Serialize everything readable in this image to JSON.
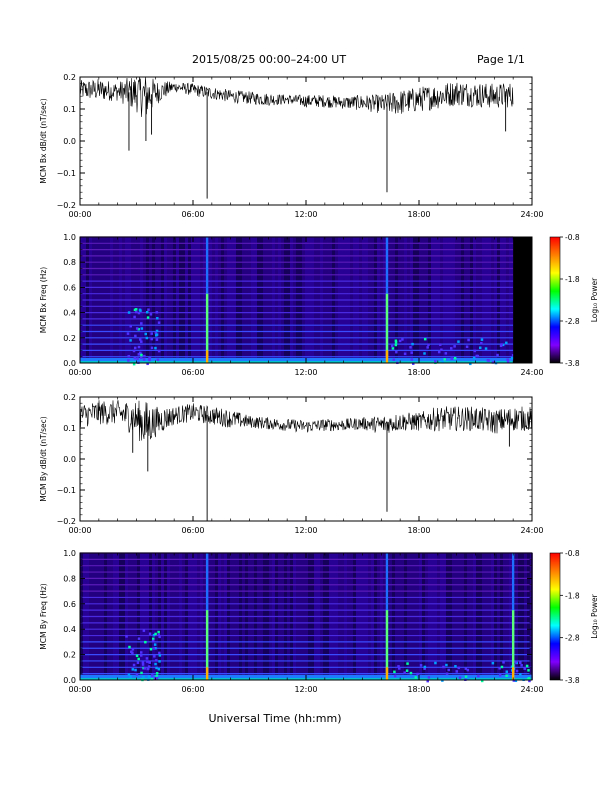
{
  "header": {
    "title": "2015/08/25  00:00–24:00 UT",
    "page": "Page 1/1"
  },
  "xlabel": "Universal Time (hh:mm)",
  "chart_data": [
    {
      "type": "line",
      "id": "bx_dbdt",
      "ylabel": "MCM Bx dB/dt (nT/sec)",
      "xlim_hours": [
        0,
        24
      ],
      "xticks": [
        "00:00",
        "06:00",
        "12:00",
        "18:00",
        "24:00"
      ],
      "ylim": [
        -0.2,
        0.2
      ],
      "yticks": [
        "0.2",
        "0.1",
        "0.0",
        "−0.1",
        "−0.2"
      ],
      "ytick_values": [
        0.2,
        0.1,
        0.0,
        -0.1,
        -0.2
      ],
      "data_end_hour": 23.0,
      "envelope_hours": [
        0,
        1,
        2,
        3,
        3.5,
        4,
        5,
        6,
        7,
        8,
        9,
        10,
        11,
        12,
        13,
        14,
        15,
        16,
        17,
        18,
        19,
        20,
        21,
        22,
        23
      ],
      "envelope_center": [
        0.16,
        0.16,
        0.155,
        0.15,
        0.14,
        0.15,
        0.17,
        0.16,
        0.15,
        0.14,
        0.135,
        0.13,
        0.13,
        0.125,
        0.125,
        0.12,
        0.12,
        0.115,
        0.12,
        0.13,
        0.14,
        0.15,
        0.145,
        0.14,
        0.145
      ],
      "envelope_amplitude": [
        0.03,
        0.035,
        0.03,
        0.06,
        0.08,
        0.04,
        0.015,
        0.02,
        0.02,
        0.02,
        0.02,
        0.02,
        0.015,
        0.02,
        0.02,
        0.02,
        0.025,
        0.03,
        0.04,
        0.04,
        0.04,
        0.04,
        0.04,
        0.04,
        0.04
      ],
      "spikes": [
        {
          "hour": 2.6,
          "min": -0.03
        },
        {
          "hour": 3.5,
          "min": 0.0
        },
        {
          "hour": 3.8,
          "min": 0.02
        },
        {
          "hour": 6.75,
          "min": -0.18
        },
        {
          "hour": 16.3,
          "min": -0.16
        },
        {
          "hour": 22.6,
          "min": 0.03
        }
      ]
    },
    {
      "type": "heatmap",
      "id": "bx_spec",
      "ylabel": "MCM Bx Freq (Hz)",
      "xlim_hours": [
        0,
        24
      ],
      "xticks": [
        "00:00",
        "06:00",
        "12:00",
        "18:00",
        "24:00"
      ],
      "ylim": [
        0,
        1.0
      ],
      "yticks": [
        "1.0",
        "0.8",
        "0.6",
        "0.4",
        "0.2",
        "0.0"
      ],
      "ytick_values": [
        1.0,
        0.8,
        0.6,
        0.4,
        0.2,
        0.0
      ],
      "data_end_hour": 23.0,
      "harmonic_lines_hz": [
        0.05,
        0.1,
        0.15,
        0.2,
        0.25,
        0.3,
        0.35,
        0.4,
        0.45,
        0.5,
        0.55,
        0.6,
        0.65,
        0.7,
        0.75,
        0.8,
        0.85,
        0.9,
        0.95,
        1.0
      ],
      "spike_hours": [
        6.75,
        16.3
      ],
      "activity_regions": [
        {
          "hour_from": 2.4,
          "hour_to": 4.2,
          "max_hz": 0.45
        },
        {
          "hour_from": 16.5,
          "hour_to": 23.0,
          "max_hz": 0.2
        }
      ],
      "colorbar": {
        "label": "Log₁₀ Power",
        "ticks": [
          "-0.8",
          "-1.8",
          "-2.8",
          "-3.8"
        ],
        "tick_values": [
          -0.8,
          -1.8,
          -2.8,
          -3.8
        ],
        "colors": [
          "#ff0000",
          "#ff8000",
          "#ffff00",
          "#00ff00",
          "#00ffff",
          "#0000ff",
          "#8000ff",
          "#000000"
        ]
      }
    },
    {
      "type": "line",
      "id": "by_dbdt",
      "ylabel": "MCM By dB/dt (nT/sec)",
      "xlim_hours": [
        0,
        24
      ],
      "xticks": [
        "00:00",
        "06:00",
        "12:00",
        "18:00",
        "24:00"
      ],
      "ylim": [
        -0.2,
        0.2
      ],
      "yticks": [
        "0.2",
        "0.1",
        "0.0",
        "−0.1",
        "−0.2"
      ],
      "ytick_values": [
        0.2,
        0.1,
        0.0,
        -0.1,
        -0.2
      ],
      "data_end_hour": 24.0,
      "envelope_hours": [
        0,
        1,
        2,
        3,
        3.5,
        4,
        5,
        6,
        7,
        8,
        9,
        10,
        11,
        12,
        13,
        14,
        15,
        16,
        17,
        18,
        19,
        20,
        21,
        22,
        23,
        24
      ],
      "envelope_center": [
        0.14,
        0.15,
        0.15,
        0.13,
        0.11,
        0.12,
        0.14,
        0.15,
        0.14,
        0.13,
        0.12,
        0.115,
        0.11,
        0.105,
        0.11,
        0.11,
        0.115,
        0.11,
        0.12,
        0.12,
        0.13,
        0.13,
        0.13,
        0.12,
        0.13,
        0.13
      ],
      "envelope_amplitude": [
        0.04,
        0.04,
        0.04,
        0.06,
        0.08,
        0.05,
        0.03,
        0.03,
        0.03,
        0.03,
        0.02,
        0.02,
        0.02,
        0.02,
        0.02,
        0.02,
        0.02,
        0.03,
        0.03,
        0.03,
        0.04,
        0.04,
        0.04,
        0.04,
        0.04,
        0.04
      ],
      "spikes": [
        {
          "hour": 2.8,
          "min": 0.02
        },
        {
          "hour": 3.6,
          "min": -0.04
        },
        {
          "hour": 6.75,
          "min": -0.2
        },
        {
          "hour": 16.3,
          "min": -0.17
        },
        {
          "hour": 22.8,
          "min": 0.04
        }
      ]
    },
    {
      "type": "heatmap",
      "id": "by_spec",
      "ylabel": "MCM By Freq (Hz)",
      "xlim_hours": [
        0,
        24
      ],
      "xticks": [
        "00:00",
        "06:00",
        "12:00",
        "18:00",
        "24:00"
      ],
      "ylim": [
        0,
        1.0
      ],
      "yticks": [
        "1.0",
        "0.8",
        "0.6",
        "0.4",
        "0.2",
        "0.0"
      ],
      "ytick_values": [
        1.0,
        0.8,
        0.6,
        0.4,
        0.2,
        0.0
      ],
      "data_end_hour": 24.0,
      "harmonic_lines_hz": [
        0.05,
        0.1,
        0.15,
        0.2,
        0.25,
        0.3,
        0.35,
        0.4,
        0.45,
        0.5,
        0.55,
        0.6,
        0.65,
        0.7,
        0.75,
        0.8,
        0.85,
        0.9,
        0.95,
        1.0
      ],
      "spike_hours": [
        6.75,
        16.3,
        23.0
      ],
      "activity_regions": [
        {
          "hour_from": 2.4,
          "hour_to": 4.2,
          "max_hz": 0.4
        },
        {
          "hour_from": 16.5,
          "hour_to": 24.0,
          "max_hz": 0.15
        }
      ],
      "colorbar": {
        "label": "Log₁₀ Power",
        "ticks": [
          "-0.8",
          "-1.8",
          "-2.8",
          "-3.8"
        ],
        "tick_values": [
          -0.8,
          -1.8,
          -2.8,
          -3.8
        ],
        "colors": [
          "#ff0000",
          "#ff8000",
          "#ffff00",
          "#00ff00",
          "#00ffff",
          "#0000ff",
          "#8000ff",
          "#000000"
        ]
      }
    }
  ]
}
